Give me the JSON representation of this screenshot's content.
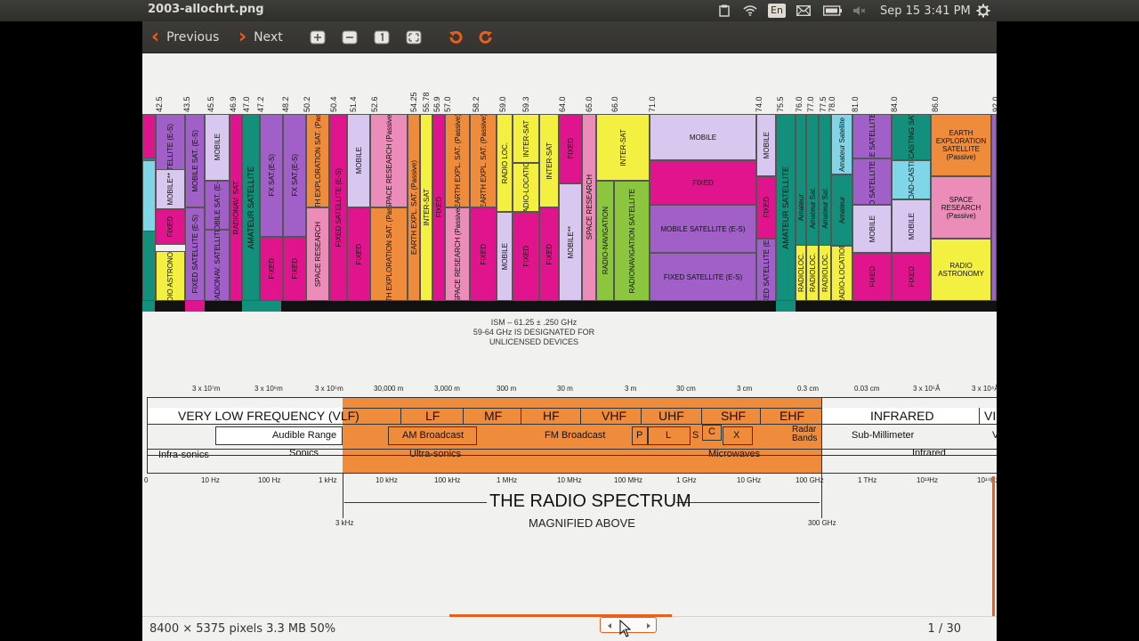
{
  "panel": {
    "title": "2003-allochrt.png",
    "language": "En",
    "datetime": "Sep 15  3:41 PM"
  },
  "toolbar": {
    "previous_label": "Previous",
    "next_label": "Next"
  },
  "chart": {
    "freq_ticks": [
      "42.5",
      "43.5",
      "45.5",
      "46.9",
      "47.0",
      "47.2",
      "48.2",
      "50.2",
      "50.4",
      "51.4",
      "52.6",
      "54.25",
      "55.78",
      "56.9",
      "57.0",
      "58.2",
      "59.0",
      "59.3",
      "64.0",
      "65.0",
      "66.0",
      "71.0",
      "74.0",
      "75.5",
      "76.0",
      "77.0",
      "77.5",
      "78.0",
      "81.0",
      "84.0",
      "86.0",
      "92.0"
    ],
    "bands": {
      "fixed_sat_es_1": "FIXED SATELLITE (E-S)",
      "mobile_1": "MOBILE",
      "mobile_star": "MOBILE**",
      "fixed_1": "FIXED",
      "mobile_sat_es": "MOBILE SAT. (E-S)",
      "mobile_sat_es_2": "MOBILE SAT. (E-S)",
      "amateur_satellite": "AMATEUR SATELLITE",
      "amateur": "AMATEUR",
      "radio_astronomy": "RADIO ASTRONOMY",
      "fixed_satellite_es": "FIXED SATELLITE (E-S)",
      "radionav_satellite": "RADIONAV. SATELLITE",
      "radionav_sat": "RADIONAV. SAT.",
      "fx_sat_s": "FX SAT.(E-S)",
      "earth_exploration_sat_passive": "EARTH EXPLORATION SAT. (Passive)",
      "space_research": "SPACE RESEARCH",
      "space_research_passive": "SPACE RESEARCH (Passive)",
      "earth_expl_sat": "EARTH EXPL. SAT. (Passive)",
      "inter_sat": "INTER-SAT",
      "radio_loc": "RADIO LOC.",
      "radiolocation": "RADIOLOCATION",
      "radio_location": "RADIO-LOCATION",
      "radio_navigation": "RADIO-NAVIGATION",
      "radionavigation_satellite": "RADIONAVIGATION SATELLITE",
      "mobile_wide": "MOBILE",
      "fixed_wide": "FIXED",
      "mobile_satellite_es_wide": "MOBILE SATELLITE (E-S)",
      "fixed_satellite_es_wide": "FIXED SATELLITE (E-S)",
      "amateur_sat": "Amateur Sat.",
      "amateur_lower": "Amateur",
      "amateur_satellite_lower": "Amateur Satellite",
      "radioloc": "RADIOLOC.",
      "mobile_satellite_se": "MOBILE SATELLITE (S-E)",
      "fixed_satellite_se": "FIXED SATELLITE (S-E)",
      "broadcasting": "BROAD-CASTING",
      "broad_casting_sat": "BROAD-CASTING SATELLITE",
      "earth_exploration_satellite_passive": "EARTH EXPLORATION SATELLITE (Passive)",
      "space_research_passive_2": "SPACE RESEARCH (Passive)",
      "radio_astronomy_2": "RADIO ASTRONOMY"
    },
    "ism_note": "ISM – 61.25 ± .250 GHz\n59-64 GHz IS DESIGNATED FOR\nUNLICENSED DEVICES",
    "wavelengths": [
      "3 x 10⁷m",
      "3 x 10⁶m",
      "3 x 10⁵m",
      "30,000 m",
      "3,000 m",
      "300 m",
      "30 m",
      "3 m",
      "30 cm",
      "3 cm",
      "0.3 cm",
      "0.03 cm",
      "3 x 10⁵Å",
      "3 x 10⁴Å"
    ],
    "frequencies": [
      "0",
      "10 Hz",
      "100 Hz",
      "1 kHz",
      "10 kHz",
      "100 kHz",
      "1 MHz",
      "10 MHz",
      "100 MHz",
      "1 GHz",
      "10 GHz",
      "100 GHz",
      "1 THz",
      "10¹³Hz",
      "10¹⁴Hz"
    ],
    "band_names": [
      "VERY LOW FREQUENCY (VLF)",
      "LF",
      "MF",
      "HF",
      "VHF",
      "UHF",
      "SHF",
      "EHF",
      "INFRARED",
      "VI"
    ],
    "sub_bands": {
      "audible": "Audible Range",
      "am": "AM Broadcast",
      "fm": "FM Broadcast",
      "radar": "Radar Bands",
      "sub_mm": "Sub-Millimeter",
      "infrasonics": "Infra-sonics",
      "sonics": "Sonics",
      "ultrasonics": "Ultra-sonics",
      "microwaves": "Microwaves",
      "infrared": "Infrared",
      "p": "P",
      "l": "L",
      "s": "S",
      "c": "C",
      "x": "X",
      "v": "V"
    },
    "title": "THE RADIO SPECTRUM",
    "subtitle": "MAGNIFIED ABOVE",
    "left_range": "3 kHz",
    "right_range": "300  GHz"
  },
  "status": {
    "info": "8400 × 5375 pixels  3.3 MB    50%",
    "pages": "1 / 30"
  },
  "colors": {
    "accent": "#e8601c",
    "magenta": "#e0158e",
    "purple": "#a060c8",
    "lavender": "#d8c8f0",
    "teal": "#12907c",
    "pink": "#ec8cb8",
    "orange": "#ef8c3c",
    "yellow": "#f4f041",
    "green": "#8cc63e",
    "cyan": "#7fd6e6"
  }
}
